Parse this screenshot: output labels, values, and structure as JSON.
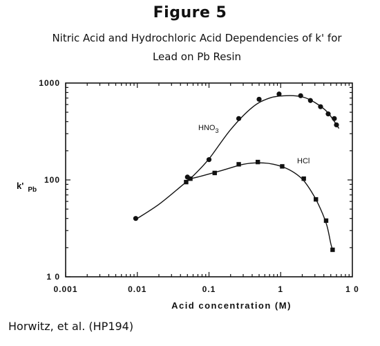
{
  "figure_label": "Figure 5",
  "subtitle_line1": "Nitric Acid and Hydrochloric Acid Dependencies of k' for",
  "subtitle_line2": "Lead on Pb Resin",
  "credit": "Horwitz, et al. (HP194)",
  "chart_data": {
    "type": "scatter",
    "xscale": "log",
    "yscale": "log",
    "xlim": [
      0.001,
      10
    ],
    "ylim": [
      10,
      1000
    ],
    "xticks": [
      {
        "value": 0.001,
        "label": "0.001"
      },
      {
        "value": 0.01,
        "label": "0.01"
      },
      {
        "value": 0.1,
        "label": "0.1"
      },
      {
        "value": 1,
        "label": "1"
      },
      {
        "value": 10,
        "label": "1 0"
      }
    ],
    "yticks": [
      {
        "value": 10,
        "label": "1 0"
      },
      {
        "value": 100,
        "label": "100"
      },
      {
        "value": 1000,
        "label": "1000"
      }
    ],
    "xlabel": "Acid  concentration  (M)",
    "ylabel_main": "k'",
    "ylabel_sub": "Pb",
    "grid": false,
    "series": [
      {
        "name": "HNO",
        "name_sub": "3",
        "marker": "circle",
        "points": [
          {
            "x": 0.0095,
            "y": 40
          },
          {
            "x": 0.05,
            "y": 107
          },
          {
            "x": 0.1,
            "y": 162
          },
          {
            "x": 0.26,
            "y": 430
          },
          {
            "x": 0.5,
            "y": 680
          },
          {
            "x": 0.95,
            "y": 770
          },
          {
            "x": 1.9,
            "y": 740
          },
          {
            "x": 2.6,
            "y": 660
          },
          {
            "x": 3.6,
            "y": 570
          },
          {
            "x": 4.6,
            "y": 480
          },
          {
            "x": 5.6,
            "y": 430
          },
          {
            "x": 6.0,
            "y": 370
          }
        ],
        "fit": [
          {
            "x": 0.01,
            "y": 40
          },
          {
            "x": 0.02,
            "y": 56
          },
          {
            "x": 0.04,
            "y": 85
          },
          {
            "x": 0.06,
            "y": 110
          },
          {
            "x": 0.1,
            "y": 165
          },
          {
            "x": 0.2,
            "y": 330
          },
          {
            "x": 0.4,
            "y": 560
          },
          {
            "x": 0.7,
            "y": 700
          },
          {
            "x": 1.2,
            "y": 740
          },
          {
            "x": 2.0,
            "y": 720
          },
          {
            "x": 3.0,
            "y": 630
          },
          {
            "x": 4.5,
            "y": 500
          },
          {
            "x": 6.5,
            "y": 340
          }
        ]
      },
      {
        "name": "HCl",
        "marker": "square",
        "points": [
          {
            "x": 0.048,
            "y": 95
          },
          {
            "x": 0.055,
            "y": 103
          },
          {
            "x": 0.12,
            "y": 118
          },
          {
            "x": 0.26,
            "y": 145
          },
          {
            "x": 0.48,
            "y": 153
          },
          {
            "x": 1.05,
            "y": 138
          },
          {
            "x": 2.1,
            "y": 103
          },
          {
            "x": 3.1,
            "y": 63
          },
          {
            "x": 4.3,
            "y": 38
          },
          {
            "x": 5.3,
            "y": 19
          }
        ],
        "fit": [
          {
            "x": 0.05,
            "y": 101
          },
          {
            "x": 0.08,
            "y": 110
          },
          {
            "x": 0.15,
            "y": 125
          },
          {
            "x": 0.3,
            "y": 145
          },
          {
            "x": 0.5,
            "y": 150
          },
          {
            "x": 0.8,
            "y": 145
          },
          {
            "x": 1.3,
            "y": 128
          },
          {
            "x": 2.0,
            "y": 102
          },
          {
            "x": 2.8,
            "y": 72
          },
          {
            "x": 3.6,
            "y": 50
          },
          {
            "x": 4.4,
            "y": 34
          },
          {
            "x": 5.0,
            "y": 22
          },
          {
            "x": 5.3,
            "y": 19
          }
        ]
      }
    ]
  }
}
